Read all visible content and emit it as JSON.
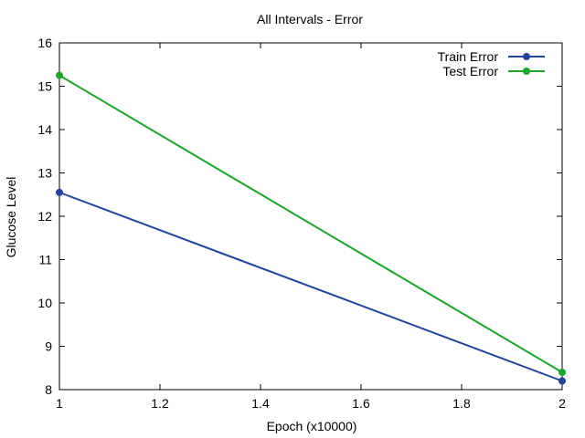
{
  "chart_data": {
    "type": "line",
    "title": "All Intervals - Error",
    "xlabel": "Epoch (x10000)",
    "ylabel": "Glucose Level",
    "xlim": [
      1,
      2
    ],
    "ylim": [
      8,
      16
    ],
    "x_ticks": [
      "1",
      "1.2",
      "1.4",
      "1.6",
      "1.8",
      "2"
    ],
    "y_ticks": [
      "8",
      "9",
      "10",
      "11",
      "12",
      "13",
      "14",
      "15",
      "16"
    ],
    "grid": false,
    "legend_position": "top-right",
    "series": [
      {
        "name": "Train Error",
        "color": "#1f45a0",
        "x": [
          1,
          2
        ],
        "y": [
          12.55,
          8.2
        ]
      },
      {
        "name": "Test Error",
        "color": "#19a82a",
        "x": [
          1,
          2
        ],
        "y": [
          15.25,
          8.4
        ]
      }
    ]
  }
}
